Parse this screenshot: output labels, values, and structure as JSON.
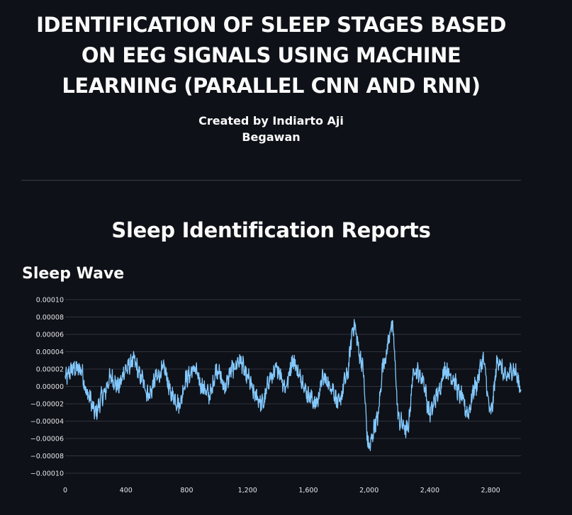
{
  "header": {
    "title": "IDENTIFICATION OF SLEEP STAGES BASED ON EEG SIGNALS USING MACHINE LEARNING (PARALLEL CNN AND RNN)",
    "byline_line1": "Created by Indiarto Aji",
    "byline_line2": "Begawan"
  },
  "report": {
    "section_title": "Sleep Identification Reports",
    "chart_title": "Sleep Wave"
  },
  "colors": {
    "background": "#0e1117",
    "line": "#83c9ff",
    "grid": "#31333f",
    "text": "#fafafa"
  },
  "chart_data": {
    "type": "line",
    "title": "Sleep Wave",
    "xlabel": "",
    "ylabel": "",
    "xlim": [
      0,
      3000
    ],
    "ylim": [
      -0.0001,
      0.0001
    ],
    "x_ticks": [
      0,
      400,
      800,
      1200,
      1600,
      2000,
      2400,
      2800
    ],
    "x_tick_labels": [
      "0",
      "400",
      "800",
      "1,200",
      "1,600",
      "2,000",
      "2,400",
      "2,800"
    ],
    "y_ticks": [
      -0.0001,
      -8e-05,
      -6e-05,
      -4e-05,
      -2e-05,
      0,
      2e-05,
      4e-05,
      6e-05,
      8e-05,
      0.0001
    ],
    "y_tick_labels": [
      "−0.00010",
      "−0.00008",
      "−0.00006",
      "−0.00004",
      "−0.00002",
      "0.00000",
      "0.00002",
      "0.00004",
      "0.00006",
      "0.00008",
      "0.00010"
    ],
    "grid": true,
    "series": [
      {
        "x": [
          0,
          50,
          100,
          150,
          200,
          250,
          300,
          350,
          400,
          450,
          500,
          550,
          600,
          650,
          700,
          750,
          800,
          850,
          900,
          950,
          1000,
          1050,
          1100,
          1150,
          1200,
          1250,
          1300,
          1350,
          1400,
          1450,
          1500,
          1550,
          1600,
          1650,
          1700,
          1750,
          1800,
          1850,
          1900,
          1950,
          2000,
          2050,
          2100,
          2150,
          2200,
          2250,
          2300,
          2350,
          2400,
          2450,
          2500,
          2550,
          2600,
          2650,
          2700,
          2750,
          2800,
          2850,
          2900,
          2950,
          3000
        ],
        "y": [
          1e-05,
          2e-05,
          2e-05,
          -1e-05,
          -3e-05,
          -1e-05,
          1e-05,
          0.0,
          2e-05,
          3e-05,
          1e-05,
          -1e-05,
          1e-05,
          2e-05,
          -1e-05,
          -2e-05,
          1e-05,
          2e-05,
          0.0,
          -1e-05,
          2e-05,
          0.0,
          2e-05,
          3e-05,
          1e-05,
          -1e-05,
          -2e-05,
          1e-05,
          2e-05,
          0.0,
          3e-05,
          1e-05,
          -1e-05,
          -2e-05,
          1e-05,
          0.0,
          -2e-05,
          1e-05,
          7e-05,
          3e-05,
          -7e-05,
          -4e-05,
          3e-05,
          7e-05,
          -4e-05,
          -5e-05,
          2e-05,
          1e-05,
          -3e-05,
          -1e-05,
          2e-05,
          1e-05,
          -1e-05,
          -3e-05,
          0.0,
          3e-05,
          -3e-05,
          3e-05,
          1e-05,
          2e-05,
          0.0
        ]
      }
    ]
  }
}
